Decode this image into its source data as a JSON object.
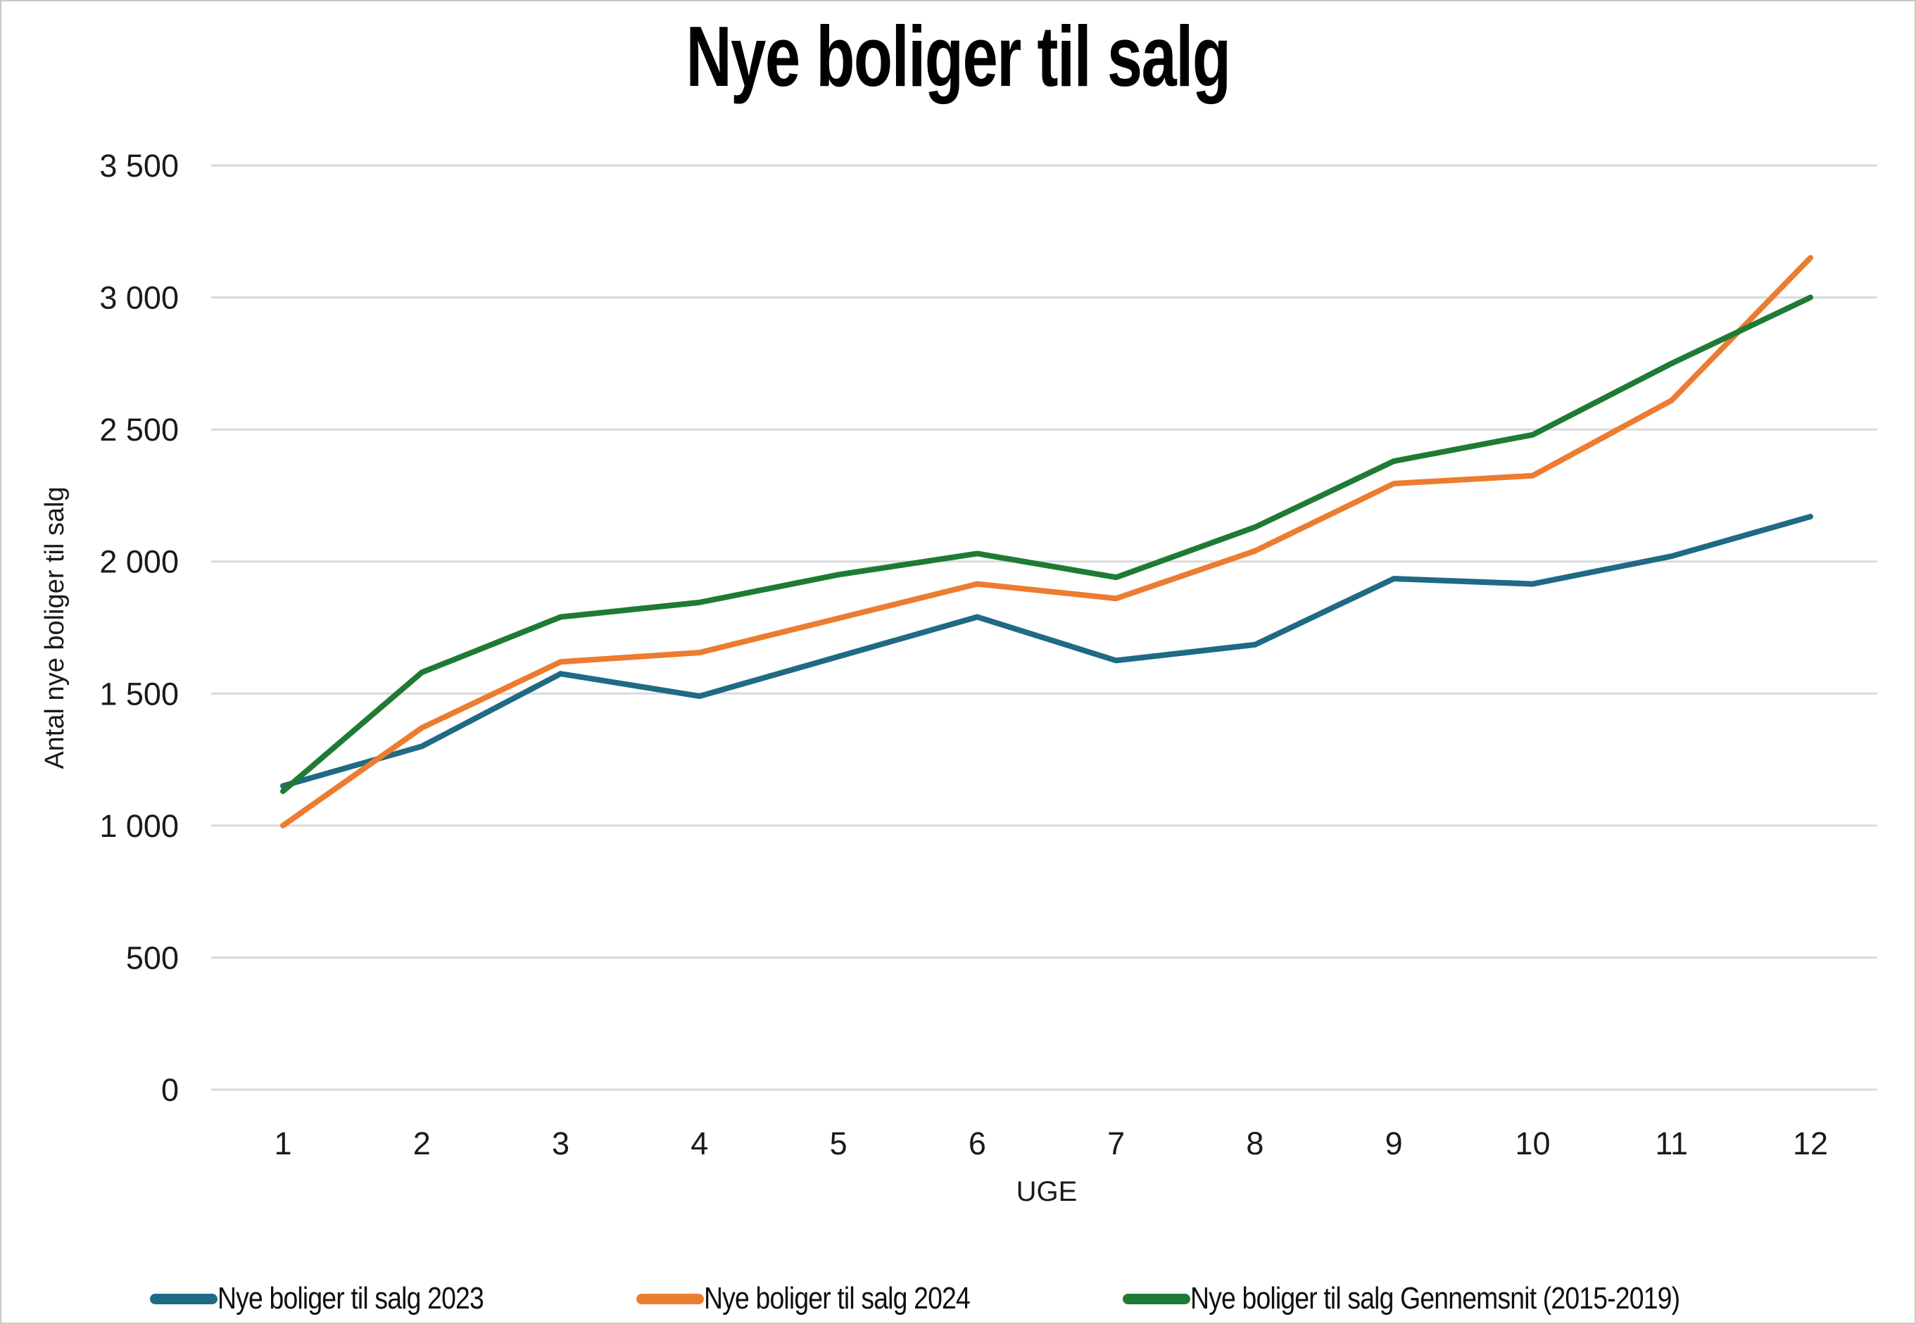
{
  "title": "Nye boliger til salg",
  "colors": {
    "series_2023": "#1F6A84",
    "series_2024": "#EC7C30",
    "series_avg": "#1F7B34",
    "gridline": "#DADADA",
    "text": "#1A1A1A"
  },
  "chart_data": {
    "type": "line",
    "title": "Nye boliger til salg",
    "xlabel": "UGE",
    "ylabel": "Antal nye boliger til salg",
    "x": [
      1,
      2,
      3,
      4,
      5,
      6,
      7,
      8,
      9,
      10,
      11,
      12
    ],
    "series": [
      {
        "name": "Nye boliger til salg 2023",
        "color_key": "series_2023",
        "values": [
          1150,
          1300,
          1575,
          1490,
          1640,
          1790,
          1625,
          1685,
          1935,
          1915,
          2020,
          2170
        ]
      },
      {
        "name": "Nye boliger til salg 2024",
        "color_key": "series_2024",
        "values": [
          1000,
          1370,
          1620,
          1655,
          1785,
          1915,
          1860,
          2040,
          2295,
          2325,
          2610,
          3150
        ]
      },
      {
        "name": "Nye boliger til salg Gennemsnit (2015-2019)",
        "color_key": "series_avg",
        "values": [
          1130,
          1580,
          1790,
          1845,
          1950,
          2030,
          1940,
          2130,
          2380,
          2480,
          2750,
          3000
        ]
      }
    ],
    "ylim": [
      0,
      3500
    ],
    "ytick_values": [
      0,
      500,
      1000,
      1500,
      2000,
      2500,
      3000,
      3500
    ],
    "ytick_labels": [
      "0",
      "500",
      "1 000",
      "1 500",
      "2 000",
      "2 500",
      "3 000",
      "3 500"
    ],
    "grid": true,
    "legend_position": "bottom"
  },
  "legend": [
    {
      "label": "Nye boliger til salg 2023",
      "color_key": "series_2023"
    },
    {
      "label": "Nye boliger til salg 2024",
      "color_key": "series_2024"
    },
    {
      "label": "Nye boliger til salg Gennemsnit (2015-2019)",
      "color_key": "series_avg"
    }
  ]
}
